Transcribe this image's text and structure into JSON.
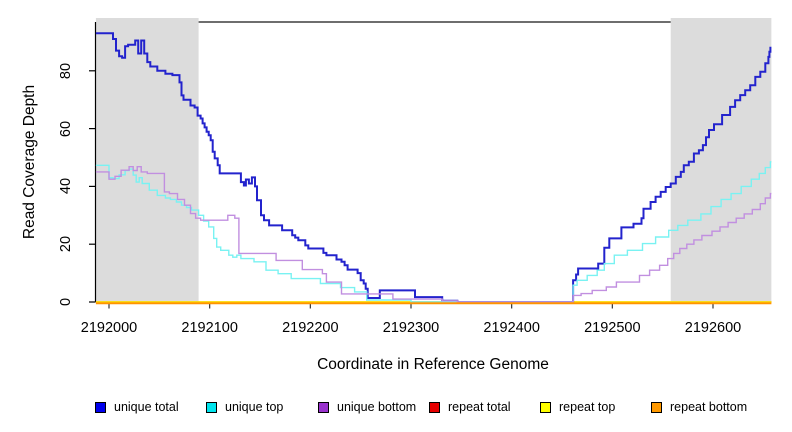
{
  "figure": {
    "xlabel": "Coordinate in Reference Genome",
    "ylabel": "Read Coverage Depth",
    "x_tick_labels": [
      "2192000",
      "2192100",
      "2192200",
      "2192300",
      "2192400",
      "2192500",
      "2192600"
    ],
    "y_tick_labels": [
      "0",
      "20",
      "40",
      "60",
      "80"
    ]
  },
  "legend": {
    "items": [
      {
        "label": "unique total",
        "color": "#0000EE"
      },
      {
        "label": "unique top",
        "color": "#00E5EE"
      },
      {
        "label": "unique bottom",
        "color": "#9932CC"
      },
      {
        "label": "repeat total",
        "color": "#E60000"
      },
      {
        "label": "repeat top",
        "color": "#FFFF00"
      },
      {
        "label": "repeat bottom",
        "color": "#FF9900"
      }
    ]
  },
  "chart_data": {
    "type": "line",
    "subtype": "step",
    "title": "",
    "xlabel": "Coordinate in Reference Genome",
    "ylabel": "Read Coverage Depth",
    "xlim": [
      2191987,
      2192658
    ],
    "ylim": [
      0,
      97
    ],
    "x_ticks": [
      2192000,
      2192100,
      2192200,
      2192300,
      2192400,
      2192500,
      2192600
    ],
    "y_ticks": [
      0,
      20,
      40,
      60,
      80
    ],
    "grid": false,
    "legend_position": "bottom",
    "shaded_regions": [
      {
        "x0": 2191987,
        "x1": 2192089,
        "color": "#DCDCDC"
      },
      {
        "x0": 2192558,
        "x1": 2192658,
        "color": "#DCDCDC"
      }
    ],
    "series": [
      {
        "name": "unique total",
        "line_color": "#2323CD",
        "width": 2,
        "points": [
          [
            2191987,
            93
          ],
          [
            2192004,
            91
          ],
          [
            2192007,
            87
          ],
          [
            2192010,
            85
          ],
          [
            2192013,
            84.5
          ],
          [
            2192016,
            88.5
          ],
          [
            2192019,
            89
          ],
          [
            2192026,
            90.5
          ],
          [
            2192029,
            86
          ],
          [
            2192032,
            90.5
          ],
          [
            2192035,
            86
          ],
          [
            2192038,
            83
          ],
          [
            2192041,
            81.5
          ],
          [
            2192048,
            80
          ],
          [
            2192056,
            79
          ],
          [
            2192063,
            78.5
          ],
          [
            2192070,
            76
          ],
          [
            2192072,
            71.5
          ],
          [
            2192074,
            70
          ],
          [
            2192081,
            68
          ],
          [
            2192085,
            67.3
          ],
          [
            2192088,
            64.5
          ],
          [
            2192091,
            63.5
          ],
          [
            2192093,
            61.8
          ],
          [
            2192095,
            60.4
          ],
          [
            2192097,
            58.9
          ],
          [
            2192099,
            57.7
          ],
          [
            2192101,
            56
          ],
          [
            2192103,
            52
          ],
          [
            2192105,
            49.7
          ],
          [
            2192108,
            47.3
          ],
          [
            2192110,
            44.5
          ],
          [
            2192131,
            41.5
          ],
          [
            2192134,
            40.3
          ],
          [
            2192136,
            42.4
          ],
          [
            2192139,
            41
          ],
          [
            2192142,
            43.1
          ],
          [
            2192145,
            40
          ],
          [
            2192147,
            35.2
          ],
          [
            2192151,
            30
          ],
          [
            2192154,
            28.3
          ],
          [
            2192159,
            26.5
          ],
          [
            2192172,
            24.8
          ],
          [
            2192182,
            23.1
          ],
          [
            2192185,
            22.3
          ],
          [
            2192188,
            21.4
          ],
          [
            2192195,
            19.6
          ],
          [
            2192198,
            18.5
          ],
          [
            2192213,
            17
          ],
          [
            2192216,
            16.2
          ],
          [
            2192226,
            14.7
          ],
          [
            2192231,
            13.9
          ],
          [
            2192234,
            12.7
          ],
          [
            2192237,
            11.2
          ],
          [
            2192247,
            10
          ],
          [
            2192250,
            7.5
          ],
          [
            2192253,
            6.4
          ],
          [
            2192255,
            4.6
          ],
          [
            2192257,
            1.4
          ],
          [
            2192269,
            4
          ],
          [
            2192304,
            1.7
          ],
          [
            2192331,
            0.4
          ],
          [
            2192346,
            0
          ],
          [
            2192461,
            7.5
          ],
          [
            2192464,
            9.5
          ],
          [
            2192466,
            11.6
          ],
          [
            2192486,
            13.3
          ],
          [
            2192492,
            18.8
          ],
          [
            2192497,
            22
          ],
          [
            2192509,
            25.8
          ],
          [
            2192521,
            27.1
          ],
          [
            2192529,
            29
          ],
          [
            2192531,
            32.3
          ],
          [
            2192538,
            34.6
          ],
          [
            2192543,
            36.4
          ],
          [
            2192548,
            38.1
          ],
          [
            2192553,
            39.8
          ],
          [
            2192558,
            41
          ],
          [
            2192563,
            43.3
          ],
          [
            2192568,
            45
          ],
          [
            2192571,
            47.3
          ],
          [
            2192576,
            48.5
          ],
          [
            2192581,
            51.4
          ],
          [
            2192586,
            52.5
          ],
          [
            2192590,
            54.3
          ],
          [
            2192593,
            57
          ],
          [
            2192596,
            59.5
          ],
          [
            2192601,
            61.5
          ],
          [
            2192609,
            64.7
          ],
          [
            2192617,
            67.5
          ],
          [
            2192622,
            69.8
          ],
          [
            2192627,
            71.6
          ],
          [
            2192632,
            73.3
          ],
          [
            2192637,
            75
          ],
          [
            2192642,
            77.9
          ],
          [
            2192647,
            79.7
          ],
          [
            2192652,
            82.6
          ],
          [
            2192655,
            84.8
          ],
          [
            2192656,
            86.6
          ],
          [
            2192657,
            88
          ]
        ]
      },
      {
        "name": "unique top",
        "line_color": "#79F2F2",
        "width": 1.4,
        "points": [
          [
            2191987,
            47.3
          ],
          [
            2192000,
            43
          ],
          [
            2192004,
            42.7
          ],
          [
            2192010,
            44
          ],
          [
            2192016,
            45.5
          ],
          [
            2192020,
            46
          ],
          [
            2192024,
            43.9
          ],
          [
            2192027,
            41.5
          ],
          [
            2192030,
            43
          ],
          [
            2192033,
            41
          ],
          [
            2192040,
            38.7
          ],
          [
            2192048,
            36.9
          ],
          [
            2192056,
            36
          ],
          [
            2192061,
            35.5
          ],
          [
            2192067,
            34.6
          ],
          [
            2192072,
            33.5
          ],
          [
            2192077,
            32.7
          ],
          [
            2192082,
            31.8
          ],
          [
            2192089,
            30
          ],
          [
            2192094,
            28
          ],
          [
            2192099,
            26
          ],
          [
            2192104,
            22
          ],
          [
            2192107,
            19
          ],
          [
            2192111,
            17.9
          ],
          [
            2192119,
            16.2
          ],
          [
            2192123,
            15.5
          ],
          [
            2192127,
            16.2
          ],
          [
            2192131,
            15
          ],
          [
            2192144,
            13.9
          ],
          [
            2192156,
            11
          ],
          [
            2192168,
            9.8
          ],
          [
            2192181,
            8.1
          ],
          [
            2192210,
            6.4
          ],
          [
            2192230,
            5
          ],
          [
            2192244,
            3.5
          ],
          [
            2192256,
            0.7
          ],
          [
            2192300,
            0
          ],
          [
            2192461,
            5.8
          ],
          [
            2192465,
            7.5
          ],
          [
            2192475,
            9.2
          ],
          [
            2192485,
            11
          ],
          [
            2192492,
            13.3
          ],
          [
            2192502,
            16.2
          ],
          [
            2192515,
            17.9
          ],
          [
            2192530,
            20.2
          ],
          [
            2192543,
            22.5
          ],
          [
            2192556,
            24.8
          ],
          [
            2192565,
            26.5
          ],
          [
            2192575,
            28.3
          ],
          [
            2192588,
            30.5
          ],
          [
            2192598,
            33
          ],
          [
            2192608,
            35.5
          ],
          [
            2192618,
            37.5
          ],
          [
            2192628,
            40
          ],
          [
            2192638,
            42.5
          ],
          [
            2192646,
            44.5
          ],
          [
            2192652,
            46.5
          ],
          [
            2192657,
            48.5
          ]
        ]
      },
      {
        "name": "unique bottom",
        "line_color": "#C18FE0",
        "width": 1.4,
        "points": [
          [
            2191987,
            45
          ],
          [
            2192000,
            42.5
          ],
          [
            2192006,
            43.5
          ],
          [
            2192012,
            45.6
          ],
          [
            2192020,
            46.8
          ],
          [
            2192024,
            45.5
          ],
          [
            2192028,
            46.8
          ],
          [
            2192032,
            45
          ],
          [
            2192038,
            44.5
          ],
          [
            2192055,
            38.1
          ],
          [
            2192060,
            37.5
          ],
          [
            2192068,
            35.5
          ],
          [
            2192075,
            33.5
          ],
          [
            2192081,
            30.6
          ],
          [
            2192086,
            29
          ],
          [
            2192091,
            28.3
          ],
          [
            2192118,
            30
          ],
          [
            2192125,
            29
          ],
          [
            2192129,
            16.8
          ],
          [
            2192166,
            14.4
          ],
          [
            2192192,
            11.2
          ],
          [
            2192212,
            9.8
          ],
          [
            2192216,
            6.9
          ],
          [
            2192231,
            2.8
          ],
          [
            2192282,
            1
          ],
          [
            2192331,
            0.4
          ],
          [
            2192346,
            0
          ],
          [
            2192461,
            2.3
          ],
          [
            2192469,
            2.9
          ],
          [
            2192480,
            4
          ],
          [
            2192494,
            5.2
          ],
          [
            2192504,
            6.9
          ],
          [
            2192527,
            9.2
          ],
          [
            2192537,
            11
          ],
          [
            2192547,
            12.7
          ],
          [
            2192555,
            15
          ],
          [
            2192561,
            16.8
          ],
          [
            2192567,
            18.5
          ],
          [
            2192574,
            20
          ],
          [
            2192581,
            21.5
          ],
          [
            2192589,
            23
          ],
          [
            2192599,
            24.5
          ],
          [
            2192607,
            26
          ],
          [
            2192615,
            27.5
          ],
          [
            2192623,
            29
          ],
          [
            2192631,
            30.5
          ],
          [
            2192639,
            32
          ],
          [
            2192647,
            34
          ],
          [
            2192652,
            36
          ],
          [
            2192657,
            37.5
          ]
        ]
      },
      {
        "name": "repeat total",
        "line_color": "#E60000",
        "width": 1.4,
        "points": [
          [
            2191987,
            0
          ],
          [
            2192658,
            0
          ]
        ]
      },
      {
        "name": "repeat top",
        "line_color": "#FFFF00",
        "width": 1.4,
        "points": [
          [
            2191987,
            0
          ],
          [
            2192658,
            0
          ]
        ]
      },
      {
        "name": "repeat bottom",
        "line_color": "#FF9300",
        "width": 2,
        "points": [
          [
            2191987,
            0
          ],
          [
            2192658,
            0
          ]
        ]
      }
    ]
  }
}
